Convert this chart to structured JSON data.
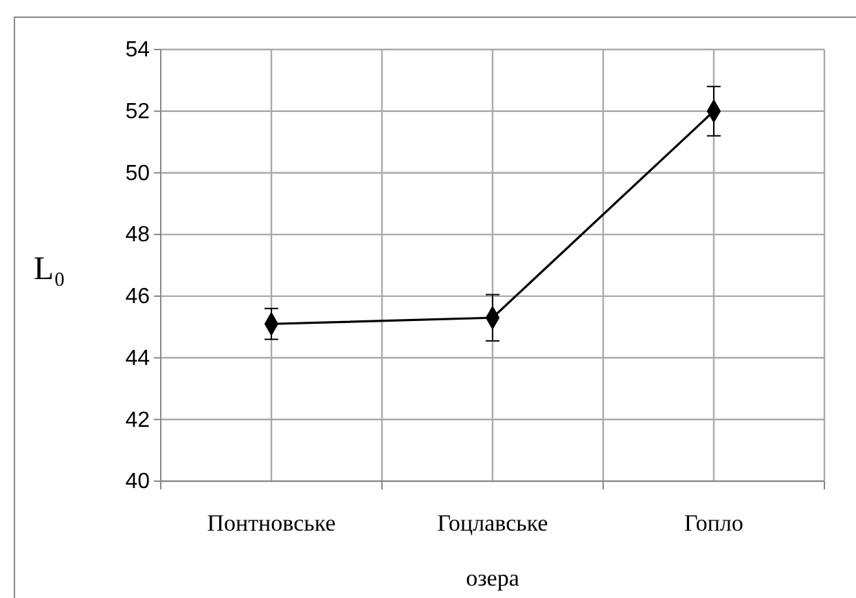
{
  "chart_data": {
    "type": "line",
    "categories": [
      "Понтновське",
      "Гоцлавське",
      "Гопло"
    ],
    "values": [
      45.1,
      45.3,
      52.0
    ],
    "errors": [
      0.5,
      0.75,
      0.8
    ],
    "color": "#000000",
    "marker": "diamond",
    "grid": true,
    "ylim": [
      40,
      54
    ],
    "yticks": [
      40,
      42,
      44,
      46,
      48,
      50,
      52,
      54
    ],
    "xlabel": "озера",
    "ylabel": "L₀"
  }
}
